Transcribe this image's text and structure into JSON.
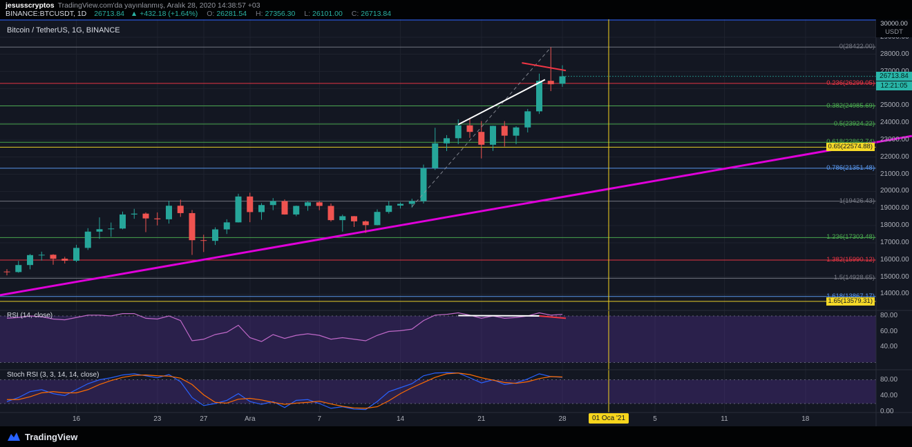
{
  "header": {
    "author": "jesusscryptos",
    "published": "TradingView.com'da yayınlanmış, Aralık 28, 2020 14:38:57 +03",
    "symbol": {
      "name": "BINANCE:BTCUSDT, 1D",
      "last": "26713.84",
      "change": "▲ +432.18 (+1.64%)",
      "o_label": "O:",
      "o": "26281.54",
      "h_label": "H:",
      "h": "27356.30",
      "l_label": "L:",
      "l": "26101.00",
      "c_label": "C:",
      "c": "26713.84"
    }
  },
  "chart": {
    "title": "Bitcoin / TetherUS, 1G, BINANCE",
    "rsi_label": "RSI (14, close)",
    "stoch_label": "Stoch RSI (3, 3, 14, 14, close)",
    "axis_top": {
      "value": "30000.00",
      "unit": "USDT"
    },
    "price_label": "26713.84",
    "countdown": "12:21:05"
  },
  "footer": {
    "brand": "TradingView"
  },
  "chart_data": {
    "type": "candlestick",
    "symbol": "BINANCE:BTCUSDT",
    "interval": "1D",
    "colors": {
      "up": "#26a69a",
      "down": "#ef5350",
      "magenta": "#df00d9",
      "vline": "#f7d51d",
      "rsi": "#c069c9",
      "stoch_k": "#2962ff",
      "stoch_d": "#ff6d00",
      "white": "#ffffff",
      "red": "#f23645",
      "dashed_gray": "#9598a1",
      "alert_blue": "#2962ff"
    },
    "candles": [
      [
        15320,
        15460,
        15100,
        15290
      ],
      [
        15290,
        15940,
        15250,
        15700
      ],
      [
        15700,
        16340,
        15450,
        16280
      ],
      [
        16280,
        16480,
        15960,
        16300
      ],
      [
        16300,
        16330,
        15720,
        16070
      ],
      [
        16070,
        16180,
        15790,
        15950
      ],
      [
        15950,
        16880,
        15870,
        16700
      ],
      [
        16700,
        17850,
        16580,
        17650
      ],
      [
        17650,
        18480,
        17230,
        17790
      ],
      [
        17790,
        18180,
        17350,
        17830
      ],
      [
        17830,
        18820,
        17780,
        18650
      ],
      [
        18650,
        18980,
        18400,
        18700
      ],
      [
        18700,
        18770,
        17620,
        18420
      ],
      [
        18420,
        18770,
        18010,
        18370
      ],
      [
        18370,
        19450,
        18120,
        19160
      ],
      [
        19160,
        19510,
        18510,
        18730
      ],
      [
        18730,
        18910,
        16290,
        17150
      ],
      [
        17150,
        17470,
        16460,
        17110
      ],
      [
        17110,
        17900,
        16870,
        17780
      ],
      [
        17780,
        18370,
        17510,
        18190
      ],
      [
        18190,
        19860,
        18180,
        19700
      ],
      [
        19700,
        19920,
        18200,
        18790
      ],
      [
        18790,
        19310,
        18340,
        19200
      ],
      [
        19200,
        19610,
        18900,
        19430
      ],
      [
        19430,
        19530,
        18640,
        18650
      ],
      [
        18650,
        19170,
        18550,
        19150
      ],
      [
        19150,
        19410,
        18870,
        19360
      ],
      [
        19360,
        19420,
        18900,
        19150
      ],
      [
        19150,
        19290,
        18240,
        18320
      ],
      [
        18320,
        18640,
        17650,
        18550
      ],
      [
        18550,
        18560,
        17920,
        18250
      ],
      [
        18250,
        18300,
        17570,
        18030
      ],
      [
        18030,
        18950,
        18020,
        18800
      ],
      [
        18800,
        19420,
        18700,
        19170
      ],
      [
        19170,
        19350,
        19000,
        19270
      ],
      [
        19270,
        19570,
        19050,
        19430
      ],
      [
        19430,
        21560,
        19290,
        21350
      ],
      [
        21350,
        23710,
        21250,
        22800
      ],
      [
        22800,
        23280,
        22350,
        23100
      ],
      [
        23100,
        24200,
        22750,
        23850
      ],
      [
        23850,
        24300,
        23120,
        23470
      ],
      [
        23470,
        24100,
        21920,
        22720
      ],
      [
        22720,
        23830,
        22360,
        23820
      ],
      [
        23820,
        24100,
        22620,
        23250
      ],
      [
        23250,
        23800,
        22750,
        23730
      ],
      [
        23730,
        24810,
        23440,
        24670
      ],
      [
        24670,
        26870,
        24520,
        26450
      ],
      [
        26450,
        28422,
        25850,
        26250
      ],
      [
        26281.54,
        27356.3,
        26101.0,
        26713.84
      ]
    ],
    "x_ticks": [
      {
        "i": 6,
        "label": "16"
      },
      {
        "i": 13,
        "label": "23"
      },
      {
        "i": 17,
        "label": "27"
      },
      {
        "i": 21,
        "label": "Ara"
      },
      {
        "i": 27,
        "label": "7"
      },
      {
        "i": 34,
        "label": "14"
      },
      {
        "i": 41,
        "label": "21"
      },
      {
        "i": 48,
        "label": "28"
      },
      {
        "i": 52,
        "label": "01 Oca '21",
        "highlight": true
      },
      {
        "i": 56,
        "label": "5"
      },
      {
        "i": 62,
        "label": "11"
      },
      {
        "i": 69,
        "label": "18"
      }
    ],
    "price_axis_values": [
      29000,
      28000,
      27000,
      26000,
      25000,
      24000,
      23000,
      22000,
      21000,
      20000,
      19000,
      18000,
      17000,
      16000,
      15000,
      14000
    ],
    "fib_levels": [
      {
        "label": "0(28422.00)",
        "price": 28422.0,
        "color": "#787b86",
        "badge": false
      },
      {
        "label": "0.236(26299.05)",
        "price": 26299.05,
        "color": "#f23645",
        "badge": false
      },
      {
        "label": "0.382(24985.69)",
        "price": 24985.69,
        "color": "#4caf50",
        "badge": false
      },
      {
        "label": "0.5(23924.22)",
        "price": 23924.22,
        "color": "#4caf50",
        "badge": false
      },
      {
        "label": "0.618(22862.74)",
        "price": 22862.74,
        "color": "#4caf50",
        "badge": false
      },
      {
        "label": "0.65(22574.88)",
        "price": 22574.88,
        "color": "#f5d928",
        "badge": true
      },
      {
        "label": "0.786(21351.48)",
        "price": 21351.48,
        "color": "#5b9cf6",
        "badge": false
      },
      {
        "label": "1(19426.43)",
        "price": 19426.43,
        "color": "#787b86",
        "badge": false
      },
      {
        "label": "1.236(17303.48)",
        "price": 17303.48,
        "color": "#4caf50",
        "badge": false
      },
      {
        "label": "1.382(15990.12)",
        "price": 15990.12,
        "color": "#f23645",
        "badge": false
      },
      {
        "label": "1.5(14928.65)",
        "price": 14928.65,
        "color": "#787b86",
        "badge": false
      },
      {
        "label": "1.618(13867.17)",
        "price": 13867.17,
        "color": "#5b9cf6",
        "badge": false
      },
      {
        "label": "1.65(13579.31)",
        "price": 13579.31,
        "color": "#f5d928",
        "badge": true
      }
    ],
    "alert_line": {
      "price": 30000
    },
    "magenta_trendline": {
      "points": [
        {
          "i": -0.6,
          "price": 13940
        },
        {
          "i": 78.2,
          "price": 23230
        }
      ]
    },
    "dashed_trendline": {
      "points": [
        {
          "i": 35,
          "price": 19100
        },
        {
          "i": 47,
          "price": 28400
        }
      ]
    },
    "white_trendline": {
      "points": [
        {
          "i": 39,
          "price": 23900
        },
        {
          "i": 46.5,
          "price": 26520
        }
      ]
    },
    "red_trendline": {
      "points": [
        {
          "i": 44.5,
          "price": 27500
        },
        {
          "i": 48.3,
          "price": 27050
        }
      ]
    },
    "event_vline": {
      "i": 52
    },
    "rsi": {
      "values": [
        77,
        78,
        80,
        79,
        76,
        75,
        78,
        81,
        81,
        80,
        83,
        83,
        77,
        76,
        80,
        74,
        48,
        50,
        56,
        59,
        68,
        52,
        47,
        56,
        51,
        55,
        57,
        55,
        50,
        52,
        50,
        48,
        55,
        60,
        61,
        63,
        74,
        81,
        82,
        84,
        81,
        77,
        80,
        77,
        78,
        80,
        84,
        81,
        82
      ],
      "band": [
        20,
        80
      ],
      "axis_values": [
        80,
        60,
        40
      ],
      "white_segment": [
        {
          "i": 39,
          "v": 80.5
        },
        {
          "i": 46,
          "v": 80
        }
      ],
      "red_segment": [
        {
          "i": 46,
          "v": 80
        },
        {
          "i": 48.3,
          "v": 77
        }
      ]
    },
    "stoch": {
      "k": [
        25,
        35,
        50,
        55,
        45,
        40,
        55,
        70,
        80,
        85,
        92,
        95,
        90,
        85,
        93,
        75,
        35,
        15,
        20,
        28,
        45,
        25,
        18,
        25,
        10,
        28,
        30,
        20,
        8,
        12,
        6,
        5,
        25,
        50,
        60,
        70,
        90,
        97,
        98,
        97,
        85,
        72,
        80,
        68,
        72,
        82,
        95,
        88,
        86
      ],
      "d": [
        30,
        30,
        37,
        47,
        50,
        47,
        47,
        55,
        68,
        78,
        86,
        91,
        92,
        90,
        89,
        84,
        68,
        42,
        23,
        21,
        31,
        33,
        29,
        23,
        18,
        21,
        23,
        26,
        19,
        13,
        9,
        8,
        12,
        27,
        45,
        60,
        73,
        86,
        95,
        97,
        93,
        85,
        79,
        73,
        71,
        75,
        83,
        88,
        87
      ],
      "band": [
        20,
        80
      ],
      "axis_values": [
        80,
        40,
        0
      ]
    }
  }
}
